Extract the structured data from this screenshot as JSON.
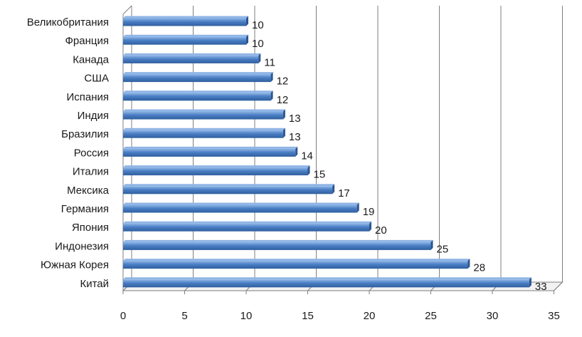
{
  "chart_data": {
    "type": "bar",
    "orientation": "horizontal",
    "categories": [
      "Великобритания",
      "Франция",
      "Канада",
      "США",
      "Испания",
      "Индия",
      "Бразилия",
      "Россия",
      "Италия",
      "Мексика",
      "Германия",
      "Япония",
      "Индонезия",
      "Южная Корея",
      "Китай"
    ],
    "values": [
      10,
      10,
      11,
      12,
      12,
      13,
      13,
      14,
      15,
      17,
      19,
      20,
      25,
      28,
      33
    ],
    "value_labels": [
      "10",
      "10",
      "11",
      "12",
      "12",
      "13",
      "13",
      "14",
      "15",
      "17",
      "19",
      "20",
      "25",
      "28",
      "33"
    ],
    "xlim": [
      0,
      35
    ],
    "x_ticks": [
      "0",
      "5",
      "10",
      "15",
      "20",
      "25",
      "30",
      "35"
    ],
    "grid": "vertical",
    "style": "3d",
    "colors": {
      "bar": "#4a7ec4",
      "bar_top": "#8fb5e6",
      "bar_side": "#2c5691",
      "grid": "#7f7f7f",
      "floor": "#d9d9d9"
    }
  }
}
